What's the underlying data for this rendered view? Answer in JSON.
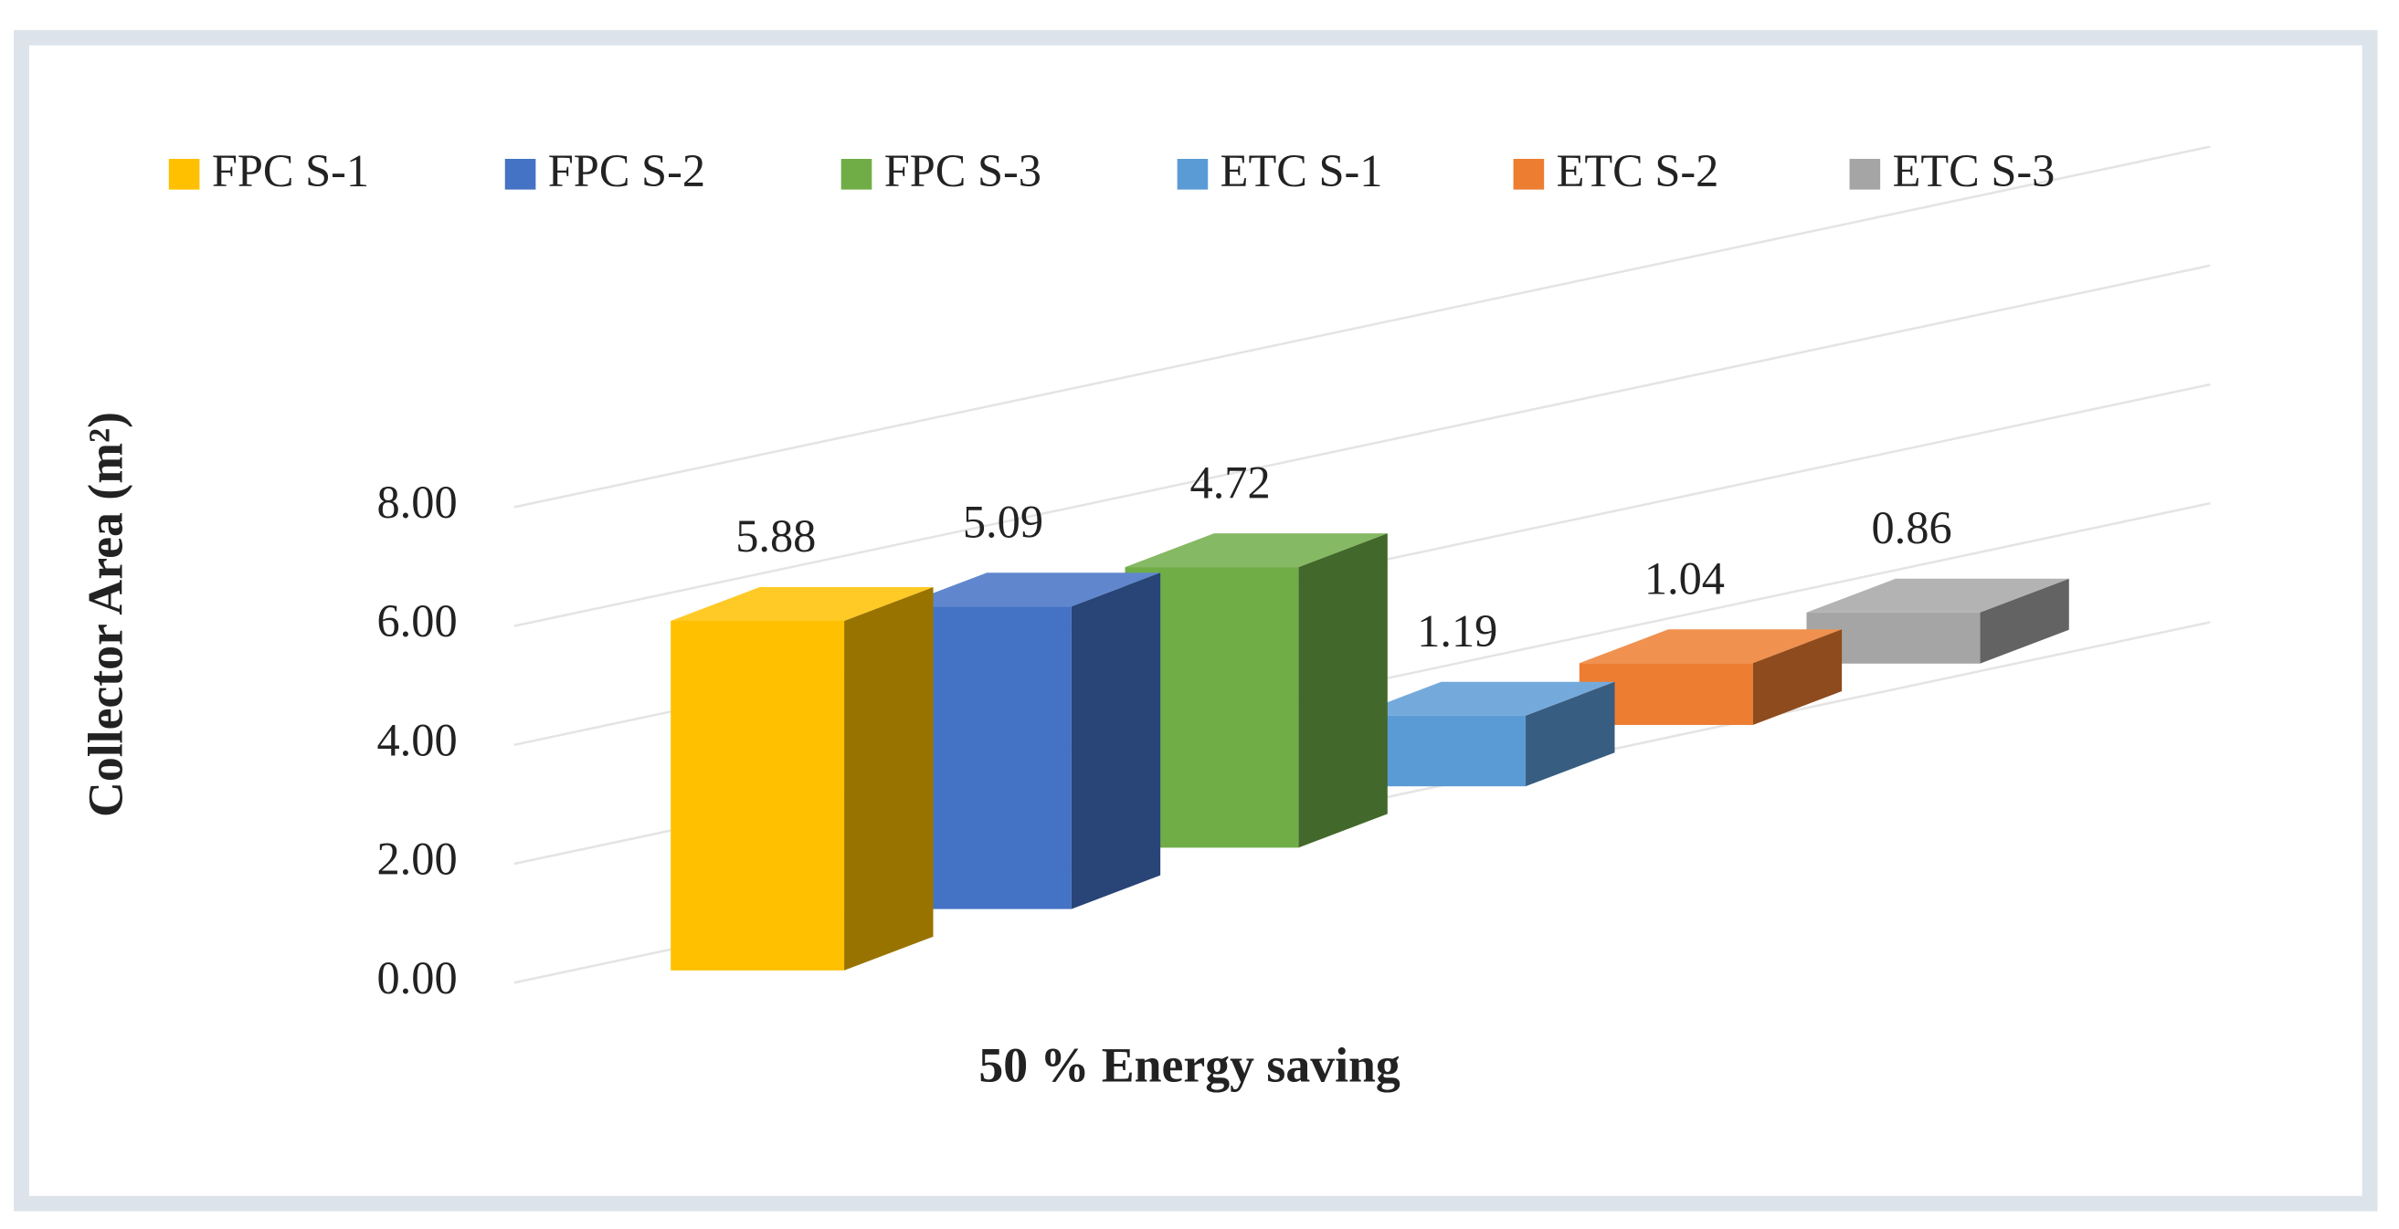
{
  "chart_data": {
    "type": "bar3d",
    "categories": [
      "50 % Energy saving"
    ],
    "y_label": "Collector Area (m²)",
    "series": [
      {
        "name": "FPC S-1",
        "color": "#ffc000",
        "values": [
          5.88
        ]
      },
      {
        "name": "FPC S-2",
        "color": "#4472c4",
        "values": [
          5.09
        ]
      },
      {
        "name": "FPC S-3",
        "color": "#70ad47",
        "values": [
          4.72
        ]
      },
      {
        "name": "ETC S-1",
        "color": "#5b9bd5",
        "values": [
          1.19
        ]
      },
      {
        "name": "ETC S-2",
        "color": "#ed7d31",
        "values": [
          1.04
        ]
      },
      {
        "name": "ETC S-3",
        "color": "#a5a5a5",
        "values": [
          0.86
        ]
      }
    ],
    "ylim": [
      0,
      8
    ],
    "yticks": [
      {
        "value": 0,
        "label": "0.00"
      },
      {
        "value": 2,
        "label": "2.00"
      },
      {
        "value": 4,
        "label": "4.00"
      },
      {
        "value": 6,
        "label": "6.00"
      },
      {
        "value": 8,
        "label": "8.00"
      }
    ],
    "grid": true,
    "legend": "top"
  }
}
